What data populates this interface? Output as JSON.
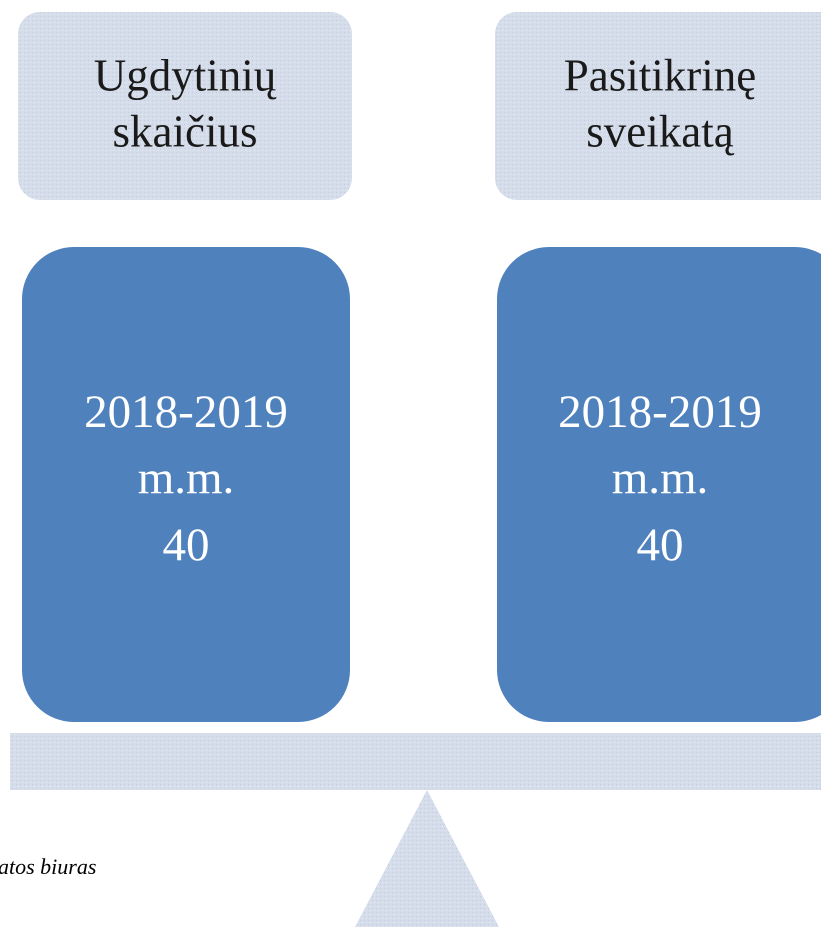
{
  "columns": [
    {
      "header": [
        "Ugdytinių",
        "skaičius"
      ],
      "lines": [
        "2018-2019",
        "m.m.",
        40
      ]
    },
    {
      "header": [
        "Pasitikrinę",
        "sveikatą"
      ],
      "lines": [
        "2018-2019",
        "m.m.",
        40
      ]
    }
  ],
  "caption": "atos biuras"
}
